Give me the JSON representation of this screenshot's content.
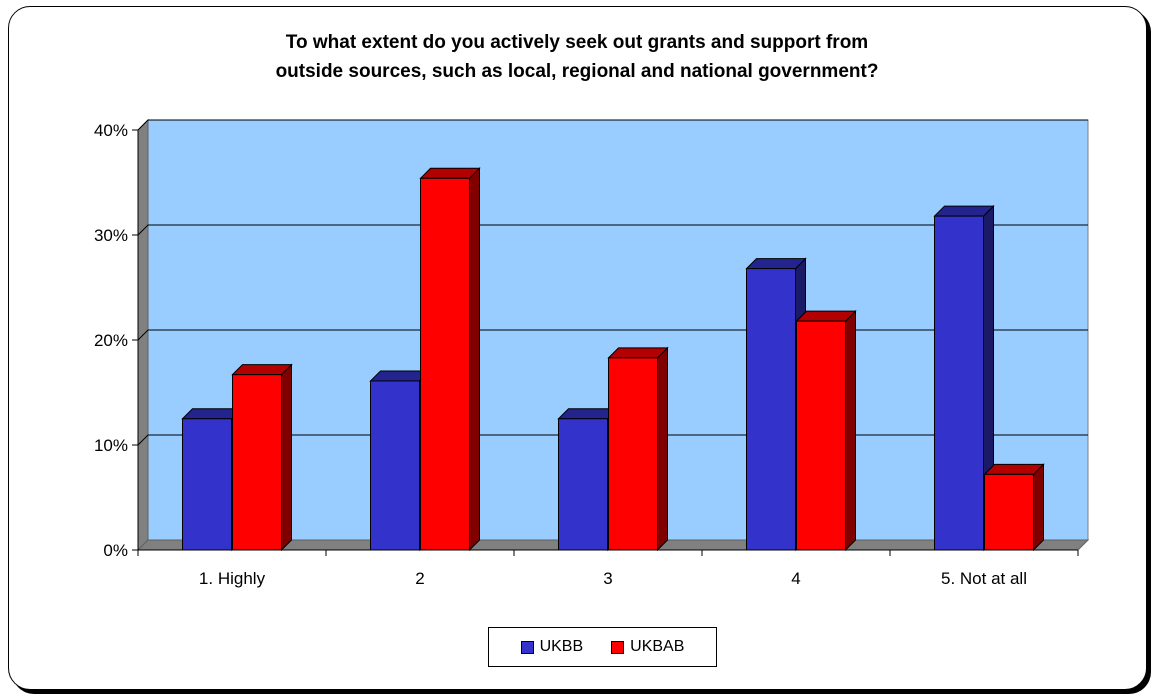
{
  "chart_data": {
    "type": "bar",
    "title": "To what extent do you actively seek out grants and support from outside sources, such as local, regional and national government?",
    "title_lines": [
      "To what extent do you actively seek out grants and support from",
      "outside sources, such as local, regional and national government?"
    ],
    "categories": [
      "1. Highly",
      "2",
      "3",
      "4",
      "5. Not at all"
    ],
    "series": [
      {
        "name": "UKBB",
        "color": "#3333cc",
        "values": [
          12.5,
          16.1,
          12.5,
          26.8,
          31.8
        ]
      },
      {
        "name": "UKBAB",
        "color": "#ff0000",
        "values": [
          16.7,
          35.4,
          18.3,
          21.8,
          7.2
        ]
      }
    ],
    "ylim": [
      0,
      40
    ],
    "yticks": [
      "0%",
      "10%",
      "20%",
      "30%",
      "40%"
    ],
    "xlabel": "",
    "ylabel": "",
    "grid": true,
    "legend": "bottom",
    "plot_background": "#99ccff"
  }
}
